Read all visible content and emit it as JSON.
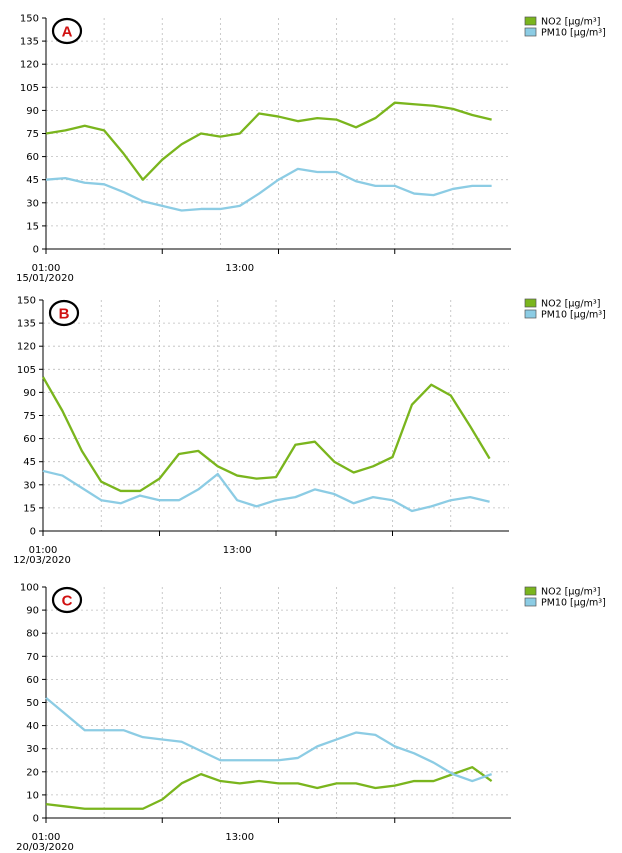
{
  "chart_data": [
    {
      "type": "line",
      "panel_label": "A",
      "x_tick_labels": [
        "01:00",
        "13:00"
      ],
      "date_label": "15/01/2020",
      "y_ticks": [
        "0",
        "15",
        "30",
        "45",
        "60",
        "75",
        "90",
        "105",
        "120",
        "135",
        "150"
      ],
      "ylim": [
        0,
        150
      ],
      "grid": true,
      "legend_position": "right",
      "x": [
        "01:00",
        "02:00",
        "03:00",
        "04:00",
        "05:00",
        "06:00",
        "07:00",
        "08:00",
        "09:00",
        "10:00",
        "11:00",
        "12:00",
        "13:00",
        "14:00",
        "15:00",
        "16:00",
        "17:00",
        "18:00",
        "19:00",
        "20:00",
        "21:00",
        "22:00",
        "23:00",
        "24:00"
      ],
      "series": [
        {
          "name": "NO2 [µg/m³]",
          "color": "#7ab51d",
          "values": [
            75,
            77,
            80,
            77,
            62,
            45,
            58,
            68,
            75,
            73,
            75,
            88,
            86,
            83,
            85,
            84,
            79,
            85,
            95,
            94,
            93,
            91,
            87,
            84
          ]
        },
        {
          "name": "PM10 [µg/m³]",
          "color": "#8ccce4",
          "values": [
            45,
            46,
            43,
            42,
            37,
            31,
            28,
            25,
            26,
            26,
            28,
            36,
            45,
            52,
            50,
            50,
            44,
            41,
            41,
            36,
            35,
            39,
            41,
            41
          ]
        }
      ]
    },
    {
      "type": "line",
      "panel_label": "B",
      "x_tick_labels": [
        "01:00",
        "13:00"
      ],
      "date_label": "12/03/2020",
      "y_ticks": [
        "0",
        "15",
        "30",
        "45",
        "60",
        "75",
        "90",
        "105",
        "120",
        "135",
        "150"
      ],
      "ylim": [
        0,
        150
      ],
      "grid": true,
      "legend_position": "right",
      "x": [
        "01:00",
        "02:00",
        "03:00",
        "04:00",
        "05:00",
        "06:00",
        "07:00",
        "08:00",
        "09:00",
        "10:00",
        "11:00",
        "12:00",
        "13:00",
        "14:00",
        "15:00",
        "16:00",
        "17:00",
        "18:00",
        "19:00",
        "20:00",
        "21:00",
        "22:00",
        "23:00",
        "24:00"
      ],
      "series": [
        {
          "name": "NO2 [µg/m³]",
          "color": "#7ab51d",
          "values": [
            100,
            78,
            52,
            32,
            26,
            26,
            34,
            50,
            52,
            42,
            36,
            34,
            35,
            56,
            58,
            45,
            38,
            42,
            48,
            82,
            95,
            88,
            68,
            47
          ]
        },
        {
          "name": "PM10 [µg/m³]",
          "color": "#8ccce4",
          "values": [
            39,
            36,
            28,
            20,
            18,
            23,
            20,
            20,
            27,
            37,
            20,
            16,
            20,
            22,
            27,
            24,
            18,
            22,
            20,
            13,
            16,
            20,
            22,
            19
          ]
        }
      ]
    },
    {
      "type": "line",
      "panel_label": "C",
      "x_tick_labels": [
        "01:00",
        "13:00"
      ],
      "date_label": "20/03/2020",
      "y_ticks": [
        "0",
        "10",
        "20",
        "30",
        "40",
        "50",
        "60",
        "70",
        "80",
        "90",
        "100"
      ],
      "ylim": [
        0,
        100
      ],
      "grid": true,
      "legend_position": "right",
      "x": [
        "01:00",
        "02:00",
        "03:00",
        "04:00",
        "05:00",
        "06:00",
        "07:00",
        "08:00",
        "09:00",
        "10:00",
        "11:00",
        "12:00",
        "13:00",
        "14:00",
        "15:00",
        "16:00",
        "17:00",
        "18:00",
        "19:00",
        "20:00",
        "21:00",
        "22:00",
        "23:00",
        "24:00"
      ],
      "series": [
        {
          "name": "NO2 [µg/m³]",
          "color": "#7ab51d",
          "values": [
            6,
            5,
            4,
            4,
            4,
            4,
            8,
            15,
            19,
            16,
            15,
            16,
            15,
            15,
            13,
            15,
            15,
            13,
            14,
            16,
            16,
            19,
            22,
            16
          ]
        },
        {
          "name": "PM10 [µg/m³]",
          "color": "#8ccce4",
          "values": [
            52,
            45,
            38,
            38,
            38,
            35,
            34,
            33,
            29,
            25,
            25,
            25,
            25,
            26,
            31,
            34,
            37,
            36,
            31,
            28,
            24,
            19,
            16,
            19
          ]
        }
      ]
    }
  ]
}
